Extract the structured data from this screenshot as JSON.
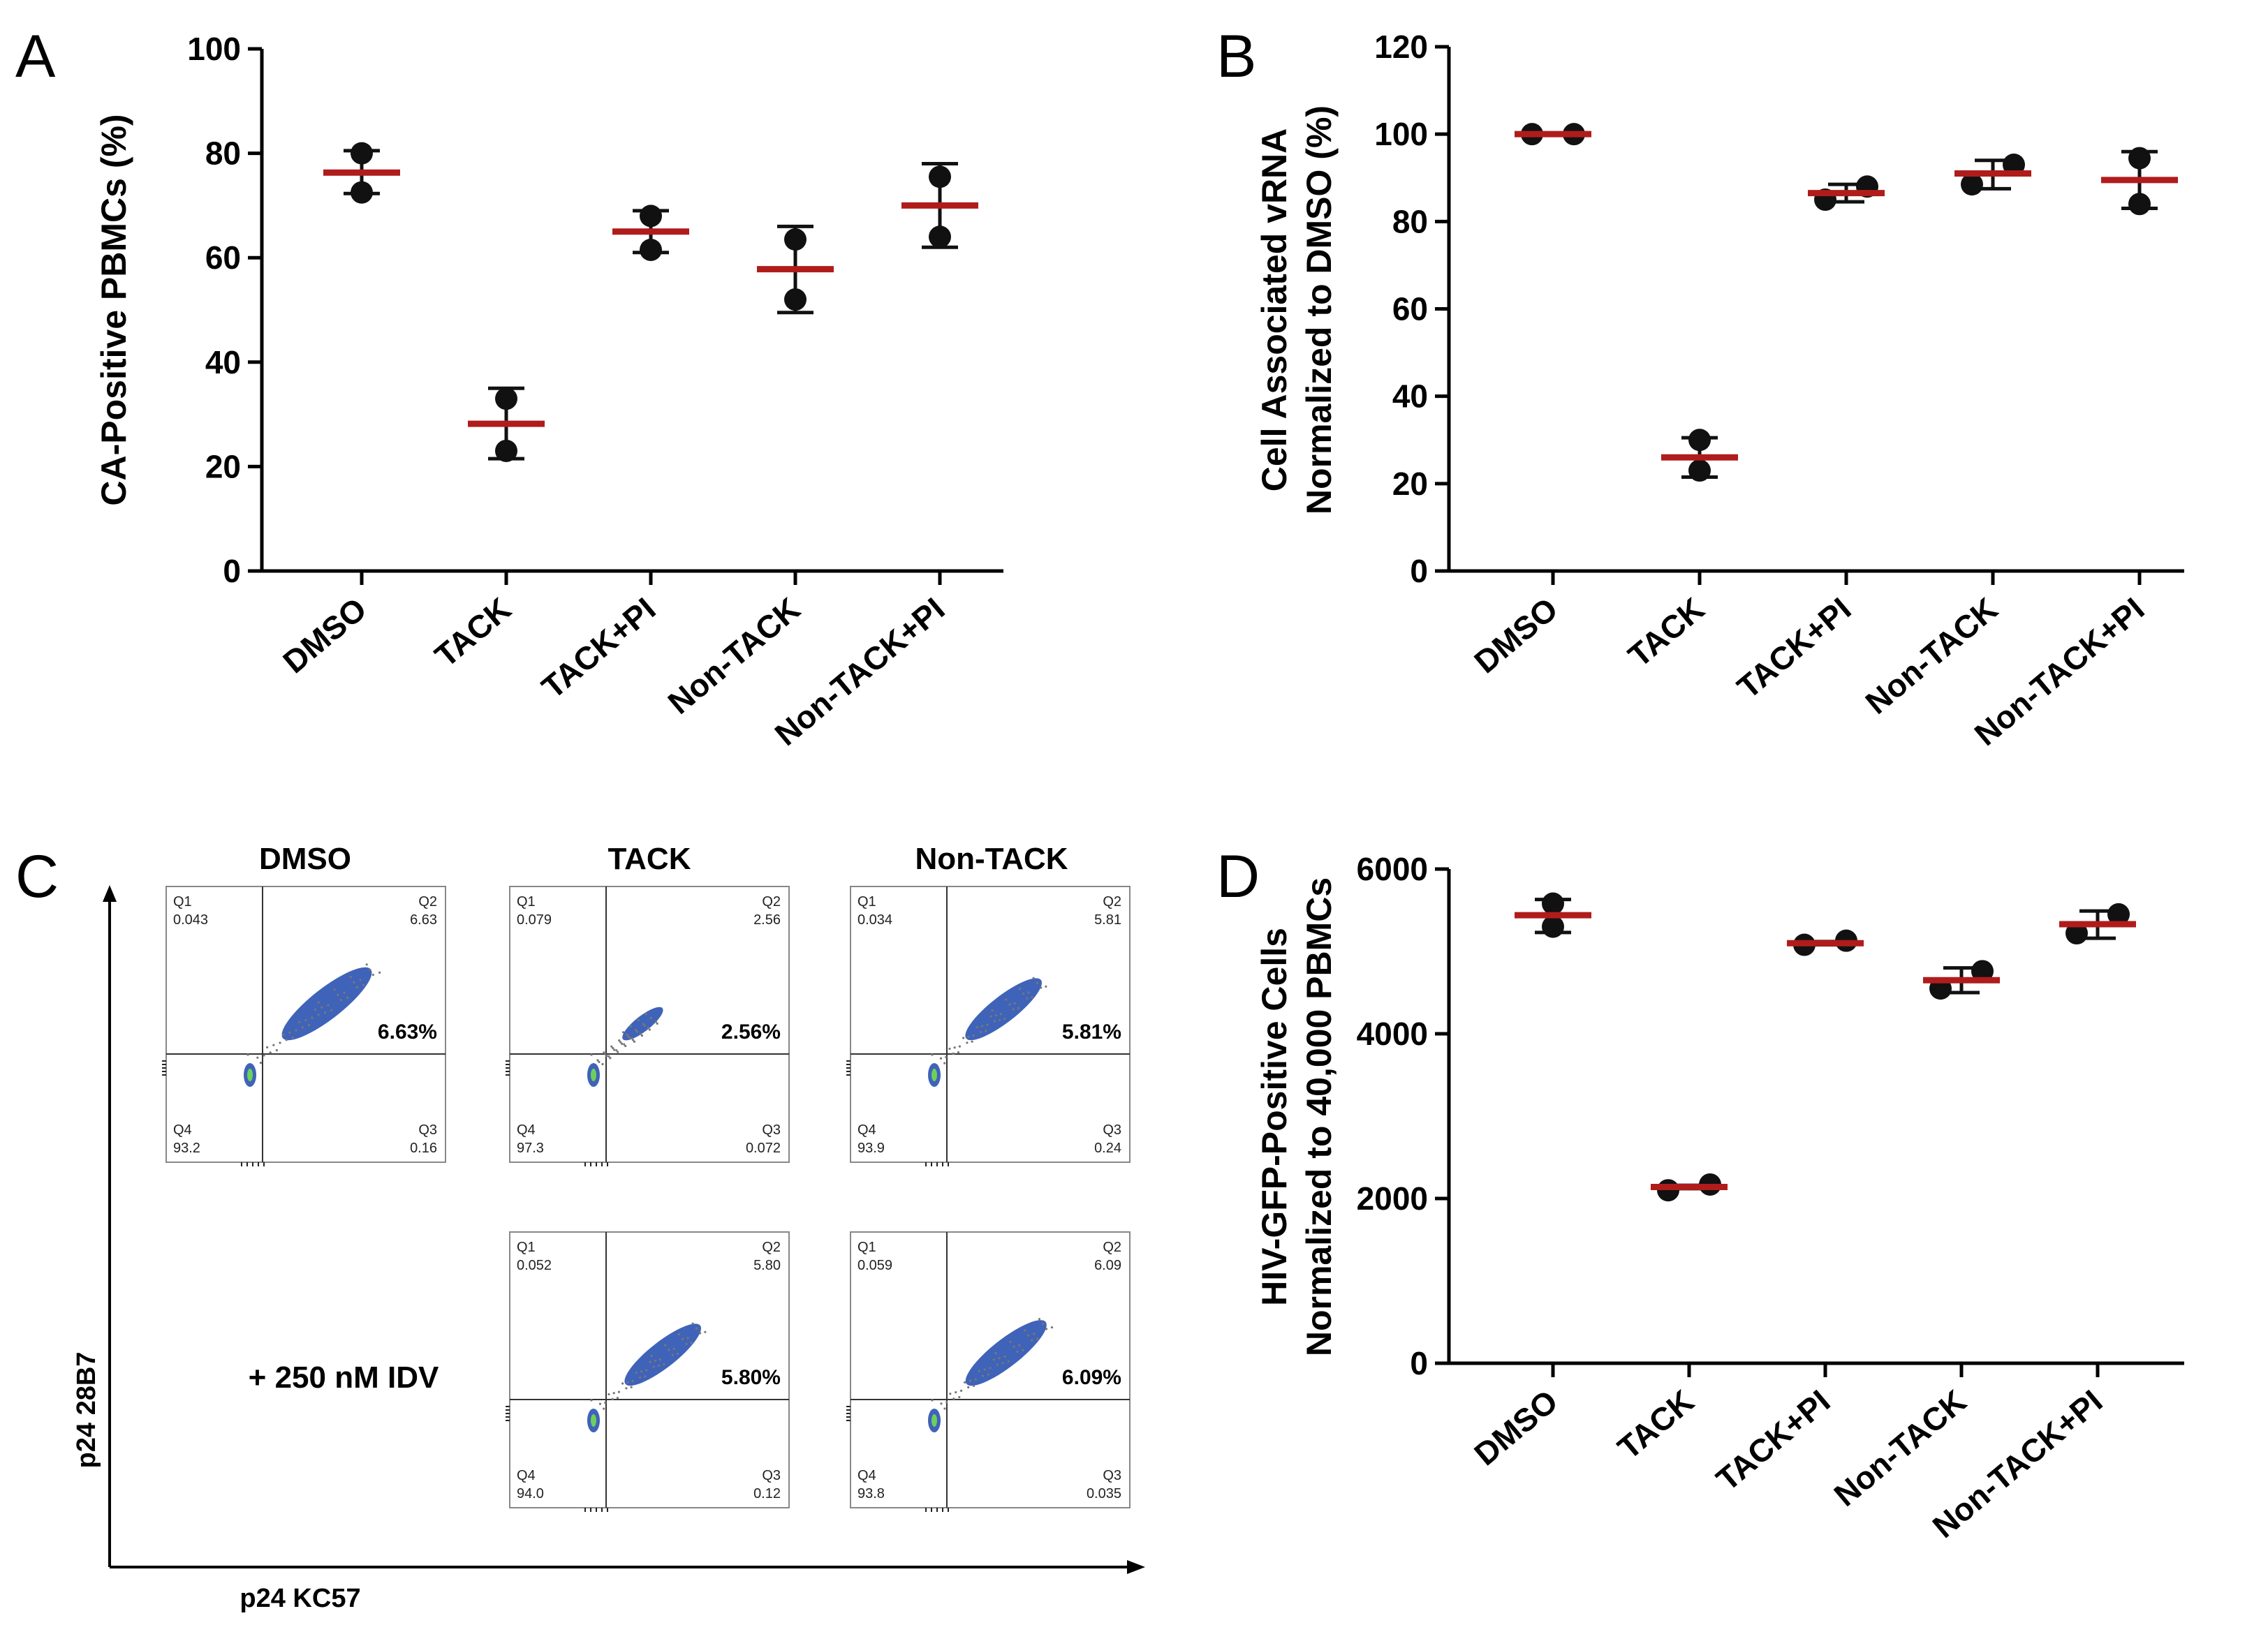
{
  "colors": {
    "mean_bar": "#b01c1c",
    "point": "#111111",
    "axis": "#000000",
    "flow_blue": "#3f63b8",
    "flow_green": "#6fcf5a",
    "flow_box": "#888888"
  },
  "chart_data": [
    {
      "panel": "A",
      "type": "scatter",
      "categories": [
        "DMSO",
        "TACK",
        "TACK+PI",
        "Non-TACK",
        "Non-TACK+PI"
      ],
      "ylabel": "CA-Positive PBMCs (%)",
      "ylim": [
        0,
        100
      ],
      "yticks": [
        0,
        20,
        40,
        60,
        80,
        100
      ],
      "series": [
        {
          "name": "points",
          "values": [
            [
              72.5,
              80.0
            ],
            [
              23.0,
              33.0
            ],
            [
              61.5,
              68.0
            ],
            [
              52.0,
              63.5
            ],
            [
              64.0,
              75.5
            ]
          ]
        },
        {
          "name": "mean",
          "values": [
            76.3,
            28.2,
            65.0,
            57.8,
            70.0
          ]
        },
        {
          "name": "error",
          "values": [
            [
              72.3,
              80.5
            ],
            [
              21.5,
              35.0
            ],
            [
              61.0,
              69.0
            ],
            [
              49.5,
              66.0
            ],
            [
              62.0,
              78.0
            ]
          ]
        }
      ]
    },
    {
      "panel": "B",
      "type": "scatter",
      "categories": [
        "DMSO",
        "TACK",
        "TACK+PI",
        "Non-TACK",
        "Non-TACK+PI"
      ],
      "ylabel": "Cell Associated vRNA",
      "ylabel2": "Normalized to DMSO (%)",
      "ylim": [
        0,
        120
      ],
      "yticks": [
        0,
        20,
        40,
        60,
        80,
        100,
        120
      ],
      "series": [
        {
          "name": "points",
          "values": [
            [
              100,
              100
            ],
            [
              23,
              30
            ],
            [
              85,
              88
            ],
            [
              88.5,
              93
            ],
            [
              84,
              94.5
            ]
          ]
        },
        {
          "name": "mean",
          "values": [
            100,
            26,
            86.5,
            91,
            89.5
          ]
        },
        {
          "name": "error",
          "values": [
            [
              100,
              100
            ],
            [
              21.5,
              30.5
            ],
            [
              84.5,
              88.5
            ],
            [
              87.5,
              94
            ],
            [
              83,
              96
            ]
          ]
        }
      ]
    },
    {
      "panel": "D",
      "type": "scatter",
      "categories": [
        "DMSO",
        "TACK",
        "TACK+PI",
        "Non-TACK",
        "Non-TACK+PI"
      ],
      "ylabel": "HIV-GFP-Positive Cells",
      "ylabel2": "Normalized to 40,000 PBMCs",
      "ylim": [
        0,
        6000
      ],
      "yticks": [
        0,
        2000,
        4000,
        6000
      ],
      "series": [
        {
          "name": "points",
          "values": [
            [
              5300,
              5580
            ],
            [
              2100,
              2170
            ],
            [
              5080,
              5130
            ],
            [
              4550,
              4760
            ],
            [
              5220,
              5450
            ]
          ]
        },
        {
          "name": "mean",
          "values": [
            5440,
            2140,
            5100,
            4650,
            5330
          ]
        },
        {
          "name": "error",
          "values": [
            [
              5230,
              5630
            ],
            [
              2120,
              2160
            ],
            [
              5080,
              5120
            ],
            [
              4500,
              4800
            ],
            [
              5160,
              5490
            ]
          ]
        }
      ]
    }
  ],
  "panelC": {
    "letter": "C",
    "headers": [
      "DMSO",
      "TACK",
      "Non-TACK"
    ],
    "treatment_label": "+ 250 nM IDV",
    "y_axis_label": "p24 28B7",
    "x_axis_label": "p24 KC57",
    "plots": [
      {
        "q1": "Q1",
        "q1v": "0.043",
        "q2": "Q2",
        "q2v": "6.63",
        "q3": "Q3",
        "q3v": "0.16",
        "q4": "Q4",
        "q4v": "93.2",
        "pct": "6.63%",
        "density": 1.0
      },
      {
        "q1": "Q1",
        "q1v": "0.079",
        "q2": "Q2",
        "q2v": "2.56",
        "q3": "Q3",
        "q3v": "0.072",
        "q4": "Q4",
        "q4v": "97.3",
        "pct": "2.56%",
        "density": 0.45
      },
      {
        "q1": "Q1",
        "q1v": "0.034",
        "q2": "Q2",
        "q2v": "5.81",
        "q3": "Q3",
        "q3v": "0.24",
        "q4": "Q4",
        "q4v": "93.9",
        "pct": "5.81%",
        "density": 0.85
      },
      {
        "q1": "Q1",
        "q1v": "0.052",
        "q2": "Q2",
        "q2v": "5.80",
        "q3": "Q3",
        "q3v": "0.12",
        "q4": "Q4",
        "q4v": "94.0",
        "pct": "5.80%",
        "density": 0.85
      },
      {
        "q1": "Q1",
        "q1v": "0.059",
        "q2": "Q2",
        "q2v": "6.09",
        "q3": "Q3",
        "q3v": "0.035",
        "q4": "Q4",
        "q4v": "93.8",
        "pct": "6.09%",
        "density": 0.9
      }
    ]
  },
  "panel_letters": [
    "A",
    "B",
    "C",
    "D"
  ]
}
